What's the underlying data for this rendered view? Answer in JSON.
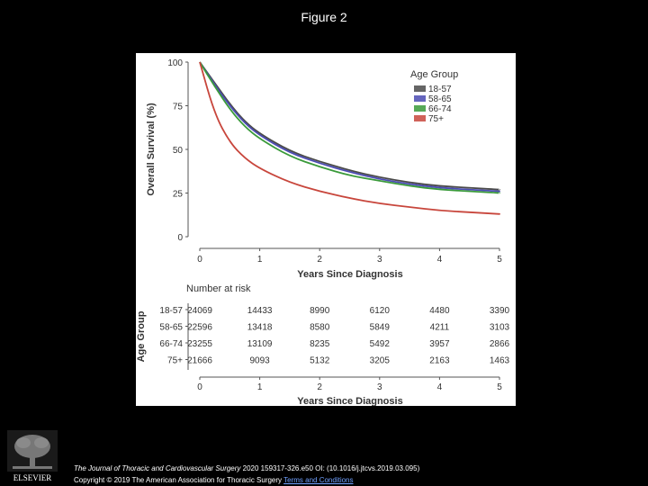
{
  "slide": {
    "title": "Figure 2"
  },
  "chart_data": {
    "type": "line",
    "xlabel": "Years Since Diagnosis",
    "ylabel": "Overall Survival (%)",
    "xlim": [
      0,
      5
    ],
    "ylim": [
      0,
      100
    ],
    "x_ticks": [
      "0",
      "1",
      "2",
      "3",
      "4",
      "5"
    ],
    "y_ticks": [
      "0",
      "25",
      "50",
      "75",
      "100"
    ],
    "legend": {
      "title": "Age Group",
      "position": "top-right"
    },
    "grid": false,
    "series": [
      {
        "name": "18-57",
        "color": "#4a4a4a",
        "x": [
          0,
          0.25,
          0.5,
          0.75,
          1,
          1.5,
          2,
          2.5,
          3,
          3.5,
          4,
          4.5,
          5
        ],
        "y": [
          100,
          88,
          76,
          66,
          59,
          49,
          43,
          38,
          34,
          31,
          29,
          28,
          27
        ]
      },
      {
        "name": "58-65",
        "color": "#4b4bb3",
        "x": [
          0,
          0.25,
          0.5,
          0.75,
          1,
          1.5,
          2,
          2.5,
          3,
          3.5,
          4,
          4.5,
          5
        ],
        "y": [
          100,
          87,
          75,
          65,
          58,
          48,
          42,
          37,
          33,
          30,
          28,
          27,
          26
        ]
      },
      {
        "name": "66-74",
        "color": "#3a9a3a",
        "x": [
          0,
          0.25,
          0.5,
          0.75,
          1,
          1.5,
          2,
          2.5,
          3,
          3.5,
          4,
          4.5,
          5
        ],
        "y": [
          100,
          86,
          73,
          63,
          56,
          46,
          40,
          35,
          32,
          29,
          27,
          26,
          25
        ]
      },
      {
        "name": "75+",
        "color": "#c8463c",
        "x": [
          0,
          0.25,
          0.5,
          0.75,
          1,
          1.5,
          2,
          2.5,
          3,
          3.5,
          4,
          4.5,
          5
        ],
        "y": [
          100,
          70,
          54,
          45,
          39,
          31,
          26,
          22,
          19,
          17,
          15,
          14,
          13
        ]
      }
    ],
    "risk_table": {
      "title": "Number at risk",
      "group_label": "Age Group",
      "xlabel": "Years Since Diagnosis",
      "x_ticks": [
        "0",
        "1",
        "2",
        "3",
        "4",
        "5"
      ],
      "rows": [
        {
          "group": "18-57",
          "values": [
            "24069",
            "14433",
            "8990",
            "6120",
            "4480",
            "3390"
          ]
        },
        {
          "group": "58-65",
          "values": [
            "22596",
            "13418",
            "8580",
            "5849",
            "4211",
            "3103"
          ]
        },
        {
          "group": "66-74",
          "values": [
            "23255",
            "13109",
            "8235",
            "5492",
            "3957",
            "2866"
          ]
        },
        {
          "group": "75+",
          "values": [
            "21666",
            "9093",
            "5132",
            "3205",
            "2163",
            "1463"
          ]
        }
      ]
    }
  },
  "footer": {
    "logo_text": "ELSEVIER",
    "journal": "The Journal of Thoracic and Cardiovascular Surgery",
    "citation_rest": " 2020 159317-326.e50 OI: (10.1016/j.jtcvs.2019.03.095)",
    "copyright": "Copyright © 2019 The American Association for Thoracic Surgery ",
    "terms": "Terms and Conditions"
  }
}
